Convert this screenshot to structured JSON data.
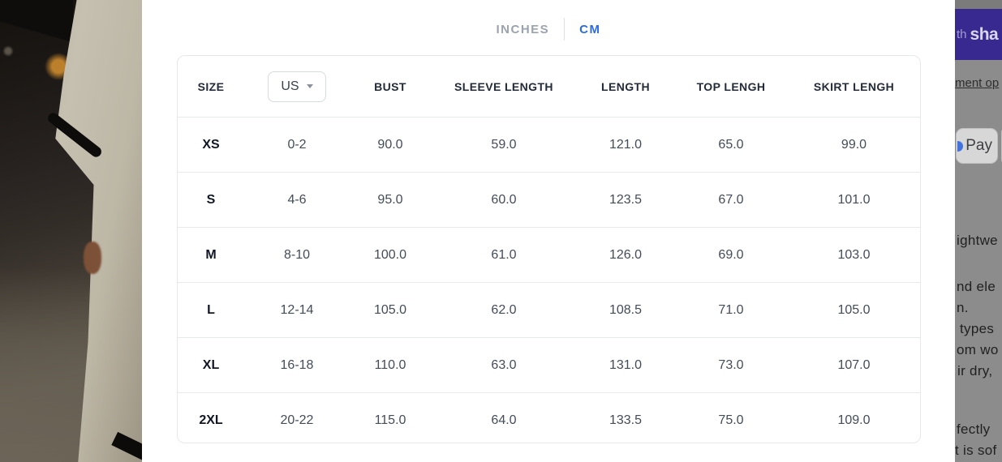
{
  "units_tabs": {
    "inches_label": "INCHES",
    "cm_label": "CM",
    "active_tab": "CM"
  },
  "size_chart": {
    "header": {
      "size": "SIZE",
      "region_dropdown": {
        "value": "US",
        "icon": "chevron-down-icon"
      },
      "bust": "BUST",
      "sleeve_length": "SLEEVE LENGTH",
      "length": "LENGTH",
      "top_length": "TOP LENGH",
      "skirt_length": "SKIRT LENGH"
    },
    "rows": [
      {
        "size": "XS",
        "us": "0-2",
        "bust": "90.0",
        "sleeve_length": "59.0",
        "length": "121.0",
        "top_length": "65.0",
        "skirt_length": "99.0"
      },
      {
        "size": "S",
        "us": "4-6",
        "bust": "95.0",
        "sleeve_length": "60.0",
        "length": "123.5",
        "top_length": "67.0",
        "skirt_length": "101.0"
      },
      {
        "size": "M",
        "us": "8-10",
        "bust": "100.0",
        "sleeve_length": "61.0",
        "length": "126.0",
        "top_length": "69.0",
        "skirt_length": "103.0"
      },
      {
        "size": "L",
        "us": "12-14",
        "bust": "105.0",
        "sleeve_length": "62.0",
        "length": "108.5",
        "top_length": "71.0",
        "skirt_length": "105.0"
      },
      {
        "size": "XL",
        "us": "16-18",
        "bust": "110.0",
        "sleeve_length": "63.0",
        "length": "131.0",
        "top_length": "73.0",
        "skirt_length": "107.0"
      },
      {
        "size": "2XL",
        "us": "20-22",
        "bust": "115.0",
        "sleeve_length": "64.0",
        "length": "133.5",
        "top_length": "75.0",
        "skirt_length": "109.0"
      }
    ]
  },
  "page_behind": {
    "announcement_banner": {
      "text_fragment": "th",
      "brand_fragment": "sha"
    },
    "payment_link_fragment": "ment op",
    "google_pay_button_label": "Pay",
    "description_fragments": [
      "ightwe",
      "nd ele",
      "n.",
      "types",
      "om wo",
      "ir dry,",
      "fectly",
      "t is sof"
    ]
  },
  "colors": {
    "accent_blue": "#2b6be6",
    "banner_purple": "#37298f",
    "dim_overlay_gray": "#8c8c8c",
    "table_border": "#e6e8ec"
  }
}
